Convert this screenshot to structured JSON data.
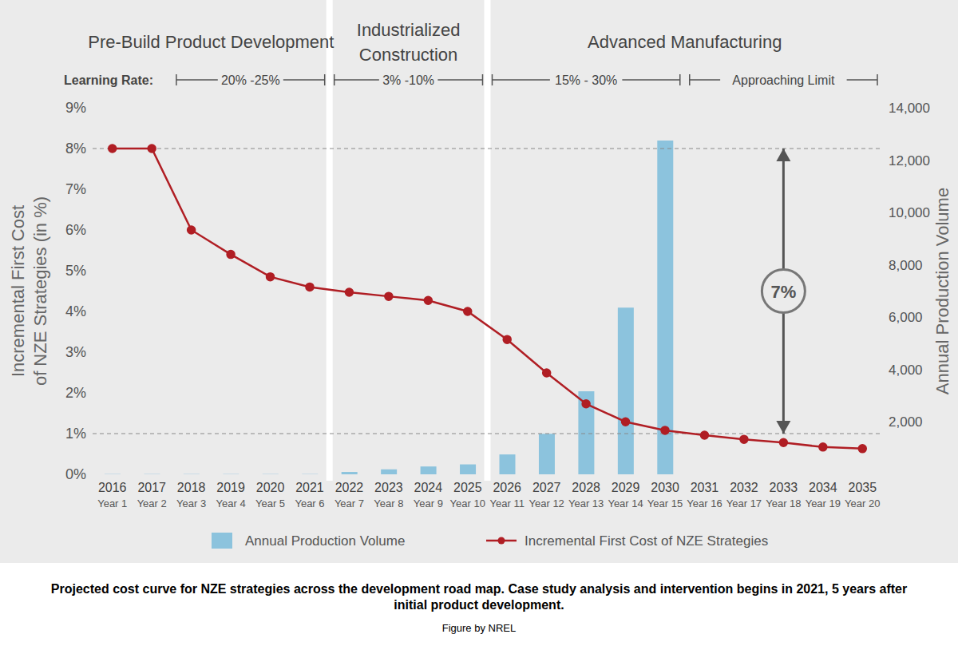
{
  "chart_data": {
    "type": "combo",
    "caption": "Projected cost curve for NZE strategies across the development road map. Case study analysis and intervention begins in 2021, 5 years after initial product development.",
    "credit": "Figure by NREL",
    "categories": [
      "2016",
      "2017",
      "2018",
      "2019",
      "2020",
      "2021",
      "2022",
      "2023",
      "2024",
      "2025",
      "2026",
      "2027",
      "2028",
      "2029",
      "2030",
      "2031",
      "2032",
      "2033",
      "2034",
      "2035"
    ],
    "category_sublabels": [
      "Year 1",
      "Year 2",
      "Year 3",
      "Year 4",
      "Year 5",
      "Year 6",
      "Year 7",
      "Year 8",
      "Year 9",
      "Year 10",
      "Year 11",
      "Year 12",
      "Year 13",
      "Year 14",
      "Year 15",
      "Year 16",
      "Year 17",
      "Year 18",
      "Year 19",
      "Year 20"
    ],
    "series": [
      {
        "name": "Annual Production Volume",
        "type": "bar",
        "color": "#8cc3dd",
        "axis": "y2",
        "values": [
          10,
          10,
          10,
          10,
          10,
          10,
          90,
          190,
          300,
          380,
          760,
          1550,
          3170,
          6370,
          12750,
          null,
          null,
          null,
          null,
          null
        ]
      },
      {
        "name": "Incremental First Cost of NZE Strategies",
        "type": "line",
        "color": "#b01e24",
        "marker": "circle",
        "values": [
          8.0,
          8.0,
          6.0,
          5.4,
          4.85,
          4.6,
          4.47,
          4.37,
          4.27,
          4.0,
          3.31,
          2.49,
          1.73,
          1.29,
          1.08,
          0.96,
          0.86,
          0.78,
          0.67,
          0.63
        ]
      }
    ],
    "y_label": "Incremental First Cost\nof NZE Strategies (in %)",
    "y2_label": "Annual Production Volume",
    "ylim": [
      0,
      9
    ],
    "yticks": [
      {
        "value": 0,
        "label": "0%"
      },
      {
        "value": 1,
        "label": "1%"
      },
      {
        "value": 2,
        "label": "2%"
      },
      {
        "value": 3,
        "label": "3%"
      },
      {
        "value": 4,
        "label": "4%"
      },
      {
        "value": 5,
        "label": "5%"
      },
      {
        "value": 6,
        "label": "6%"
      },
      {
        "value": 7,
        "label": "7%"
      },
      {
        "value": 8,
        "label": "8%"
      },
      {
        "value": 9,
        "label": "9%"
      }
    ],
    "y2lim": [
      0,
      14000
    ],
    "y2ticks": [
      0,
      {
        "value": 2000,
        "label": "2,000"
      },
      {
        "value": 4000,
        "label": "4,000"
      },
      {
        "value": 6000,
        "label": "6,000"
      },
      {
        "value": 8000,
        "label": "8,000"
      },
      {
        "value": 10000,
        "label": "10,000"
      },
      {
        "value": 12000,
        "label": "12,000"
      },
      {
        "value": 14000,
        "label": "14,000"
      }
    ],
    "grid": false,
    "legend": "bottom",
    "phases": [
      {
        "label": "Pre-Build Product Development",
        "start": "2016",
        "end": "2021"
      },
      {
        "label": "Industrialized\nConstruction",
        "start": "2022",
        "end": "2025"
      },
      {
        "label": "Advanced Manufacturing",
        "start": "2026",
        "end": "2035"
      }
    ],
    "learning_rate_label": "Learning Rate:",
    "learning_rates": [
      {
        "label": "20% -25%",
        "start": "2018",
        "end": "2021"
      },
      {
        "label": "3% -10%",
        "start": "2022",
        "end": "2025"
      },
      {
        "label": "15% - 30%",
        "start": "2026",
        "end": "2030"
      },
      {
        "label": "Approaching Limit",
        "start": "2031",
        "end": "2035"
      }
    ],
    "reference_lines": [
      8,
      1
    ],
    "annotation": {
      "text": "7%",
      "x": "2033",
      "from": 1,
      "to": 8
    }
  }
}
